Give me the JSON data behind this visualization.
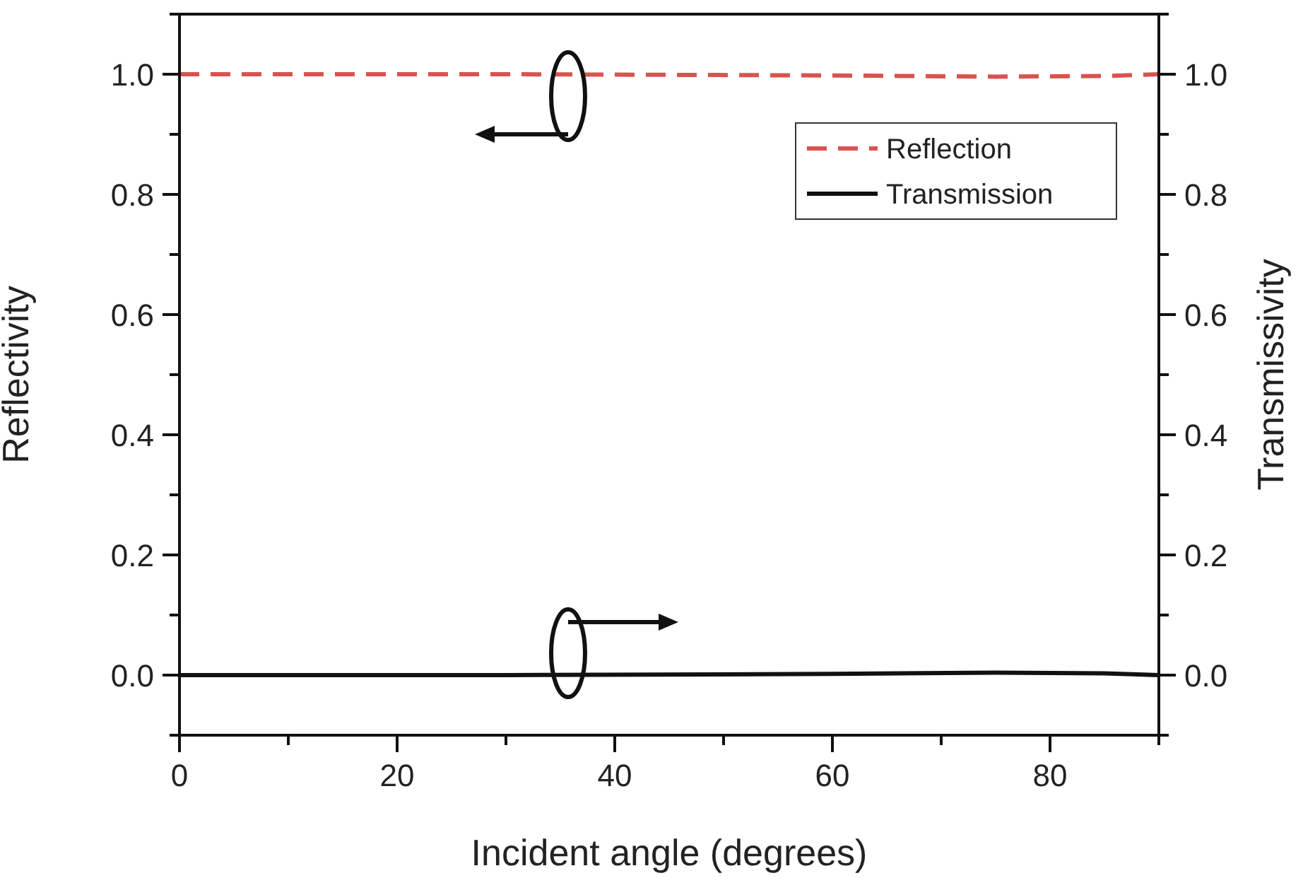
{
  "chart_data": {
    "type": "line",
    "xlabel": "Incident angle (degrees)",
    "ylabel": "Reflectivity",
    "y2label": "Transmissivity",
    "x": [
      0,
      30,
      60,
      75,
      85,
      90
    ],
    "series": [
      {
        "name": "Reflection",
        "color": "#d9534f",
        "values": [
          1,
          1,
          0.998,
          0.996,
          0.997,
          1
        ],
        "line_style": "dashed"
      },
      {
        "name": "Transmission",
        "color": "#111111",
        "values": [
          0,
          0,
          0.002,
          0.004,
          0.003,
          0
        ],
        "line_style": "solid"
      }
    ],
    "xlim": [
      0,
      90
    ],
    "xticks": [
      0,
      {
        "value": 10,
        "label": null
      },
      20,
      {
        "value": 30,
        "label": null
      },
      40,
      {
        "value": 50,
        "label": null
      },
      60,
      {
        "value": 70,
        "label": null
      },
      80,
      {
        "value": 90,
        "label": null
      }
    ],
    "ylim": [
      -0.1,
      1.1
    ],
    "yticks": [
      {
        "value": -0.1,
        "label": null
      },
      {
        "value": 0,
        "label": "0.0"
      },
      {
        "value": 0.1,
        "label": null
      },
      {
        "value": 0.2,
        "label": "0.2"
      },
      {
        "value": 0.3,
        "label": null
      },
      {
        "value": 0.4,
        "label": "0.4"
      },
      {
        "value": 0.5,
        "label": null
      },
      {
        "value": 0.6,
        "label": "0.6"
      },
      {
        "value": 0.7,
        "label": null
      },
      {
        "value": 0.8,
        "label": "0.8"
      },
      {
        "value": 0.9,
        "label": null
      },
      {
        "value": 1,
        "label": "1.0"
      },
      {
        "value": 1.1,
        "label": null
      }
    ],
    "y2lim": [
      -0.1,
      1.1
    ],
    "y2ticks": [
      {
        "value": -0.1,
        "label": null
      },
      {
        "value": 0,
        "label": "0.0"
      },
      {
        "value": 0.1,
        "label": null
      },
      {
        "value": 0.2,
        "label": "0.2"
      },
      {
        "value": 0.3,
        "label": null
      },
      {
        "value": 0.4,
        "label": "0.4"
      },
      {
        "value": 0.5,
        "label": null
      },
      {
        "value": 0.6,
        "label": "0.6"
      },
      {
        "value": 0.7,
        "label": null
      },
      {
        "value": 0.8,
        "label": "0.8"
      },
      {
        "value": 0.9,
        "label": null
      },
      {
        "value": 1,
        "label": "1.0"
      },
      {
        "value": 1.1,
        "label": null
      }
    ],
    "grid": false,
    "legend": "top right"
  }
}
